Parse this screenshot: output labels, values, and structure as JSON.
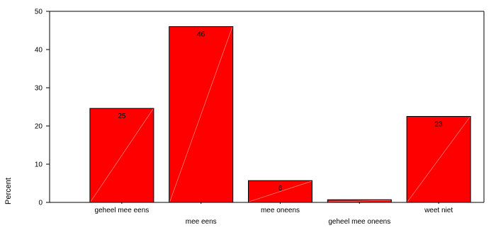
{
  "chart_data": {
    "type": "bar",
    "title": "",
    "xlabel": "",
    "ylabel": "Percent",
    "ylim": [
      0,
      50
    ],
    "yticks": [
      0,
      10,
      20,
      30,
      40,
      50
    ],
    "grid": false,
    "categories": [
      "geheel mee eens",
      "mee eens",
      "mee oneens",
      "geheel mee oneens",
      "weet niet"
    ],
    "values": [
      24.6,
      46.0,
      5.7,
      0.7,
      22.5
    ],
    "data_labels": [
      "25",
      "46",
      "6",
      "",
      "23"
    ],
    "colors": {
      "bar_fill": "#ff0000",
      "bar_stroke": "#000000",
      "bar_diagonal": "#ffa0a0"
    }
  }
}
